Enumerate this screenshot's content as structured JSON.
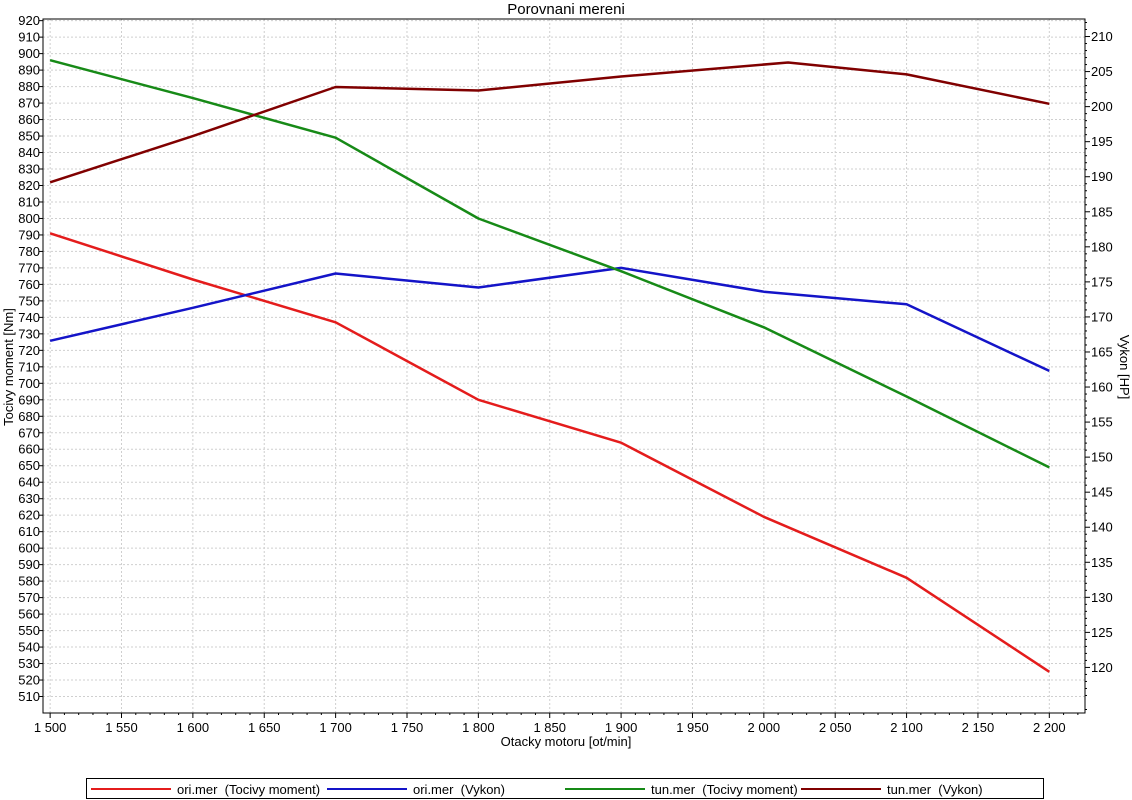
{
  "chart_data": {
    "type": "line",
    "title": "Porovnani mereni",
    "xlabel": "Otacky motoru [ot/min]",
    "ylabel": "Tocivy moment [Nm]",
    "ylabel2": "Vykon [HP]",
    "xlim": [
      1495,
      2225
    ],
    "ylim": [
      500,
      921
    ],
    "ylim2": [
      113.5,
      212.5
    ],
    "xticks": [
      1500,
      1550,
      1600,
      1650,
      1700,
      1750,
      1800,
      1850,
      1900,
      1950,
      2000,
      2050,
      2100,
      2150,
      2200
    ],
    "xtick_labels": [
      "1 500",
      "1 550",
      "1 600",
      "1 650",
      "1 700",
      "1 750",
      "1 800",
      "1 850",
      "1 900",
      "1 950",
      "2 000",
      "2 050",
      "2 100",
      "2 150",
      "2 200"
    ],
    "yticks": [
      510,
      520,
      530,
      540,
      550,
      560,
      570,
      580,
      590,
      600,
      610,
      620,
      630,
      640,
      650,
      660,
      670,
      680,
      690,
      700,
      710,
      720,
      730,
      740,
      750,
      760,
      770,
      780,
      790,
      800,
      810,
      820,
      830,
      840,
      850,
      860,
      870,
      880,
      890,
      900,
      910,
      920
    ],
    "yticks2": [
      120,
      125,
      130,
      135,
      140,
      145,
      150,
      155,
      160,
      165,
      170,
      175,
      180,
      185,
      190,
      195,
      200,
      205,
      210
    ],
    "grid": true,
    "legend_position": "bottom",
    "series": [
      {
        "name": "ori.mer  (Tocivy moment)",
        "axis": "left",
        "color": "#e41c1c",
        "x": [
          1500,
          1600,
          1700,
          1800,
          1900,
          2000,
          2100,
          2200
        ],
        "values": [
          791,
          763,
          737,
          690,
          664,
          619,
          582,
          525
        ]
      },
      {
        "name": "ori.mer  (Vykon)",
        "axis": "right",
        "color": "#1414c8",
        "x": [
          1500,
          1600,
          1700,
          1800,
          1900,
          2000,
          2100,
          2200
        ],
        "values": [
          166.6,
          171.3,
          176.2,
          174.2,
          177.0,
          173.6,
          171.8,
          162.3
        ]
      },
      {
        "name": "tun.mer  (Tocivy moment)",
        "axis": "left",
        "color": "#178a17",
        "x": [
          1500,
          1600,
          1700,
          1800,
          1900,
          2000,
          2100,
          2200
        ],
        "values": [
          896,
          873,
          849,
          800,
          768,
          734,
          692,
          649
        ]
      },
      {
        "name": "tun.mer  (Vykon)",
        "axis": "right",
        "color": "#800000",
        "x": [
          1500,
          1600,
          1700,
          1800,
          1900,
          2017,
          2100,
          2200
        ],
        "values": [
          189.2,
          195.8,
          202.8,
          202.3,
          204.3,
          206.3,
          204.6,
          200.4
        ]
      }
    ]
  }
}
